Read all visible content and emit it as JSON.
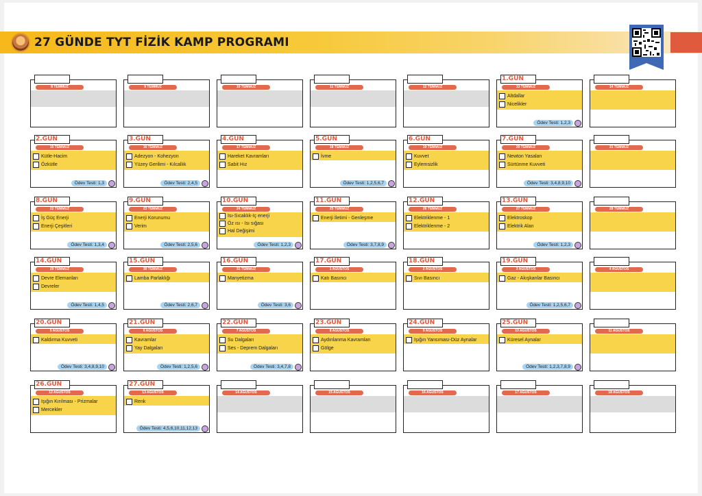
{
  "header": {
    "title": "27 GÜNDE TYT FİZİK KAMP PROGRAMI",
    "brand_colors": {
      "yellow": "#f8d44a",
      "orange": "#f6b81a",
      "red": "#e05a3e",
      "blue": "#3f68b5",
      "test_blue": "#a9d4f1",
      "circle_purple": "#c7a6e0"
    }
  },
  "cards": [
    {
      "day": "",
      "date": "8 TEMMUZ",
      "items": [],
      "test": "",
      "empty": true
    },
    {
      "day": "",
      "date": "9 TEMMUZ",
      "items": [],
      "test": "",
      "empty": true
    },
    {
      "day": "",
      "date": "10 TEMMUZ",
      "items": [],
      "test": "",
      "empty": true
    },
    {
      "day": "",
      "date": "11 TEMMUZ",
      "items": [],
      "test": "",
      "empty": true
    },
    {
      "day": "",
      "date": "12 TEMMUZ",
      "items": [],
      "test": "",
      "empty": true
    },
    {
      "day": "1.GÜN",
      "date": "13 TEMMUZ",
      "items": [
        "Altdallar",
        "Nicelikler"
      ],
      "test": "Ödev Testi: 1,2,3"
    },
    {
      "day": "",
      "date": "14 TEMMUZ",
      "items": [],
      "test": "",
      "empty": true,
      "yellow": true
    },
    {
      "day": "2.GÜN",
      "date": "15 TEMMUZ",
      "items": [
        "Kütle-Hacim",
        "Özkütle"
      ],
      "test": "Ödev Testi: 1,3"
    },
    {
      "day": "3.GÜN",
      "date": "16 TEMMUZ",
      "items": [
        "Adezyon - Kohezyon",
        "Yüzey Gerilimi - Kılcallık"
      ],
      "test": "Ödev Testi: 2,4,5"
    },
    {
      "day": "4.GÜN",
      "date": "17 TEMMUZ",
      "items": [
        "Hareket Kavramları",
        "Sabit Hız"
      ],
      "test": ""
    },
    {
      "day": "5.GÜN",
      "date": "18 TEMMUZ",
      "items": [
        "İvme"
      ],
      "test": "Ödev Testi: 1,2,5,6,7"
    },
    {
      "day": "6.GÜN",
      "date": "19 TEMMUZ",
      "items": [
        "Kuvvet",
        "Eylemsizlik"
      ],
      "test": ""
    },
    {
      "day": "7.GÜN",
      "date": "20 TEMMUZ",
      "items": [
        "Newton Yasaları",
        "Sürtünme Kuvveti"
      ],
      "test": "Ödev Testi: 3,4,8,9,10"
    },
    {
      "day": "",
      "date": "21 TEMMUZ",
      "items": [],
      "test": "",
      "empty": true,
      "yellow": true
    },
    {
      "day": "8.GÜN",
      "date": "22 TEMMUZ",
      "items": [
        "İş Güç Enerji",
        "Enerji Çeşitleri"
      ],
      "test": "Ödev Testi: 1,3,4"
    },
    {
      "day": "9.GÜN",
      "date": "23 TEMMUZ",
      "items": [
        "Enerji Korunumu",
        "Verim"
      ],
      "test": "Ödev Testi: 2,5,6"
    },
    {
      "day": "10.GÜN",
      "date": "24 TEMMUZ",
      "items": [
        "Isı-Sıcaklık-Iç enerji",
        "Öz ısı - Isı sığası",
        "Hal Değişimi"
      ],
      "test": "Ödev Testi: 1,2,3"
    },
    {
      "day": "11.GÜN",
      "date": "25 TEMMUZ",
      "items": [
        "Enerji İletimi - Genleşme"
      ],
      "test": "Ödev Testi: 3,7,8,9"
    },
    {
      "day": "12.GÜN",
      "date": "26 TEMMUZ",
      "items": [
        "Elektriklenme - 1",
        "Elektriklenme - 2"
      ],
      "test": ""
    },
    {
      "day": "13.GÜN",
      "date": "27 TEMMUZ",
      "items": [
        "Elektroskop",
        "Elektrik Alan"
      ],
      "test": "Ödev Testi: 1,2,3"
    },
    {
      "day": "",
      "date": "28 TEMMUZ",
      "items": [],
      "test": "",
      "empty": true,
      "yellow": true
    },
    {
      "day": "14.GÜN",
      "date": "29 TEMMUZ",
      "items": [
        "Devre Elemanları",
        "Devreler"
      ],
      "test": "Ödev Testi: 1,4,5"
    },
    {
      "day": "15.GÜN",
      "date": "30 TEMMUZ",
      "items": [
        "Lamba Parlaklığı"
      ],
      "test": "Ödev Testi: 2,6,7"
    },
    {
      "day": "16.GÜN",
      "date": "31 TEMMUZ",
      "items": [
        "Manyetizma"
      ],
      "test": "Ödev Testi: 3,6"
    },
    {
      "day": "17.GÜN",
      "date": "1 AĞUSTOS",
      "items": [
        "Katı Basıncı"
      ],
      "test": ""
    },
    {
      "day": "18.GÜN",
      "date": "2 AĞUSTOS",
      "items": [
        "Sıvı Basıncı"
      ],
      "test": ""
    },
    {
      "day": "19.GÜN",
      "date": "3 AĞUSTOS",
      "items": [
        "Gaz - Akışkanlar Basıncı"
      ],
      "test": "Ödev Testi: 1,2,5,6,7"
    },
    {
      "day": "",
      "date": "4 AĞUSTOS",
      "items": [],
      "test": "",
      "empty": true,
      "yellow": true
    },
    {
      "day": "20.GÜN",
      "date": "5 AĞUSTOS",
      "items": [
        "Kaldırma Kuvveti"
      ],
      "test": "Ödev Testi: 3,4,8,9,10"
    },
    {
      "day": "21.GÜN",
      "date": "6 AĞUSTOS",
      "items": [
        "Kavramlar",
        "Yay Dalgaları"
      ],
      "test": "Ödev Testi: 1,2,5,6"
    },
    {
      "day": "22.GÜN",
      "date": "7 AĞUSTOS",
      "items": [
        "Su Dalgaları",
        "Ses - Deprem Dalgaları"
      ],
      "test": "Ödev Testi: 3,4,7,8"
    },
    {
      "day": "23.GÜN",
      "date": "8 AĞUSTOS",
      "items": [
        "Aydınlanma Kavramları",
        "Gölge"
      ],
      "test": ""
    },
    {
      "day": "24.GÜN",
      "date": "9 AĞUSTOS",
      "items": [
        "Işığın Yansıması-Düz Aynalar"
      ],
      "test": ""
    },
    {
      "day": "25.GÜN",
      "date": "10 AĞUSTOS",
      "items": [
        "Küresel Aynalar"
      ],
      "test": "Ödev Testi: 1,2,3,7,8,9"
    },
    {
      "day": "",
      "date": "11 AĞUSTOS",
      "items": [],
      "test": "",
      "empty": true,
      "yellow": true
    },
    {
      "day": "26.GÜN",
      "date": "12 AĞUSTOS",
      "items": [
        "Işığın Kırılması - Prizmalar",
        "Mercekler"
      ],
      "test": ""
    },
    {
      "day": "27.GÜN",
      "date": "13 AĞUSTOS",
      "items": [
        "Renk"
      ],
      "test": "Ödev Testi: 4,5,6,10,11,12,13"
    },
    {
      "day": "",
      "date": "14 AĞUSTOS",
      "items": [],
      "test": "",
      "empty": true
    },
    {
      "day": "",
      "date": "15 AĞUSTOS",
      "items": [],
      "test": "",
      "empty": true
    },
    {
      "day": "",
      "date": "16 AĞUSTOS",
      "items": [],
      "test": "",
      "empty": true
    },
    {
      "day": "",
      "date": "17 AĞUSTOS",
      "items": [],
      "test": "",
      "empty": true
    },
    {
      "day": "",
      "date": "18 AĞUSTOS",
      "items": [],
      "test": "",
      "empty": true
    }
  ]
}
